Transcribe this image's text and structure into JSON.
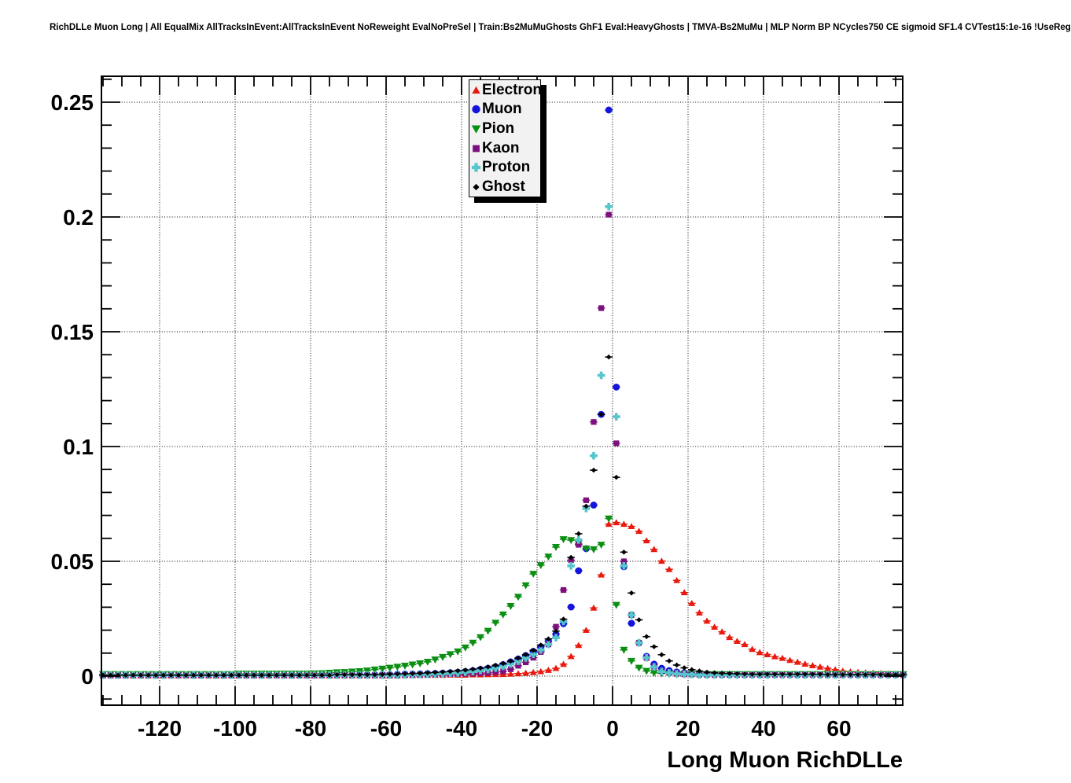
{
  "title": "RichDLLe Muon Long | All EqualMix AllTracksInEvent:AllTracksInEvent NoReweight EvalNoPreSel | Train:Bs2MuMuGhosts GhF1 Eval:HeavyGhosts | TMVA-Bs2MuMu | MLP Norm BP NCycles750 CE sigmoid SF1.4 CVTest15:1e-16 !UseReg",
  "colors": {
    "electron": "#e8190d",
    "muon": "#1414dd",
    "pion": "#0a8f12",
    "kaon": "#7d107e",
    "proton": "#55c6cd",
    "ghost": "#000000",
    "frame": "#000000",
    "grid": "#000000",
    "legend_bg": "#f2f2f2"
  },
  "chart_data": {
    "type": "scatter",
    "title": "",
    "xlabel": "Long Muon RichDLLe",
    "ylabel": "",
    "grid": "dotted, at major ticks",
    "legend_position": "top-center-right, opaque box with black drop shadow",
    "xlim": [
      -135.4,
      76.9
    ],
    "ylim": [
      -0.0127,
      0.2613
    ],
    "x_major_ticks": [
      -120,
      -100,
      -80,
      -60,
      -40,
      -20,
      0,
      20,
      40,
      60
    ],
    "x_major_tick_labels": [
      "-120",
      "-100",
      "-80",
      "-60",
      "-40",
      "-20",
      "0",
      "20",
      "40",
      "60"
    ],
    "x_minor_step": 5,
    "y_major_ticks": [
      0,
      0.05,
      0.1,
      0.15,
      0.2,
      0.25
    ],
    "y_major_tick_labels": [
      "0",
      "0.05",
      "0.1",
      "0.15",
      "0.2",
      "0.25"
    ],
    "y_minor_step": 0.01,
    "x": [
      -135,
      -133,
      -131,
      -129,
      -127,
      -125,
      -123,
      -121,
      -119,
      -117,
      -115,
      -113,
      -111,
      -109,
      -107,
      -105,
      -103,
      -101,
      -99,
      -97,
      -95,
      -93,
      -91,
      -89,
      -87,
      -85,
      -83,
      -81,
      -79,
      -77,
      -75,
      -73,
      -71,
      -69,
      -67,
      -65,
      -63,
      -61,
      -59,
      -57,
      -55,
      -53,
      -51,
      -49,
      -47,
      -45,
      -43,
      -41,
      -39,
      -37,
      -35,
      -33,
      -31,
      -29,
      -27,
      -25,
      -23,
      -21,
      -19,
      -17,
      -15,
      -13,
      -11,
      -9,
      -7,
      -5,
      -3,
      -1,
      1,
      3,
      5,
      7,
      9,
      11,
      13,
      15,
      17,
      19,
      21,
      23,
      25,
      27,
      29,
      31,
      33,
      35,
      37,
      39,
      41,
      43,
      45,
      47,
      49,
      51,
      53,
      55,
      57,
      59,
      61,
      63,
      65,
      67,
      69,
      71,
      73,
      75,
      77
    ],
    "series": [
      {
        "name": "Electron",
        "marker": "triangle-up",
        "color": "#e8190d",
        "values": [
          0.0002,
          0.0002,
          0.0002,
          0.0002,
          0.0002,
          0.0002,
          0.0002,
          0.0002,
          0.0002,
          0.0002,
          0.0002,
          0.0002,
          0.0002,
          0.0002,
          0.0002,
          0.0002,
          0.0002,
          0.0002,
          0.0002,
          0.0002,
          0.0002,
          0.0002,
          0.0002,
          0.0002,
          0.0002,
          0.0002,
          0.0002,
          0.0002,
          0.0002,
          0.0002,
          0.0002,
          0.0002,
          0.0002,
          0.0002,
          0.0002,
          0.0002,
          0.0002,
          0.0002,
          0.0002,
          0.0002,
          0.0003,
          0.0003,
          0.0003,
          0.0004,
          0.0004,
          0.0004,
          0.0005,
          0.0005,
          0.0005,
          0.0006,
          0.0006,
          0.0007,
          0.0008,
          0.0008,
          0.0009,
          0.0011,
          0.0013,
          0.0016,
          0.002,
          0.0026,
          0.0034,
          0.0052,
          0.0086,
          0.0134,
          0.02,
          0.0297,
          0.0441,
          0.0662,
          0.0669,
          0.0662,
          0.0652,
          0.0631,
          0.059,
          0.0552,
          0.0501,
          0.0465,
          0.0417,
          0.0364,
          0.0317,
          0.0276,
          0.024,
          0.0214,
          0.0193,
          0.0169,
          0.0152,
          0.0138,
          0.0117,
          0.0103,
          0.0094,
          0.0085,
          0.0078,
          0.0069,
          0.0061,
          0.0053,
          0.0046,
          0.004,
          0.0034,
          0.0028,
          0.0022,
          0.0019,
          0.0017,
          0.0015,
          0.0014,
          0.0012,
          0.0011,
          0.001,
          0.0009
        ]
      },
      {
        "name": "Muon",
        "marker": "circle",
        "color": "#1414dd",
        "values": [
          0.0004,
          0.0004,
          0.0004,
          0.0004,
          0.0004,
          0.0004,
          0.0004,
          0.0004,
          0.0004,
          0.0004,
          0.0004,
          0.0004,
          0.0004,
          0.0004,
          0.0004,
          0.0004,
          0.0004,
          0.0004,
          0.0004,
          0.0004,
          0.0004,
          0.0004,
          0.0004,
          0.0004,
          0.0004,
          0.0004,
          0.0004,
          0.0004,
          0.0004,
          0.0004,
          0.0004,
          0.0005,
          0.0005,
          0.0005,
          0.0006,
          0.0006,
          0.0006,
          0.0007,
          0.0007,
          0.0008,
          0.0009,
          0.0009,
          0.001,
          0.0011,
          0.0012,
          0.0013,
          0.0015,
          0.0017,
          0.002,
          0.0024,
          0.0029,
          0.0034,
          0.0041,
          0.005,
          0.0062,
          0.0075,
          0.009,
          0.0108,
          0.0128,
          0.0152,
          0.0183,
          0.0228,
          0.0301,
          0.0459,
          0.0555,
          0.0745,
          0.114,
          0.2466,
          0.1259,
          0.0476,
          0.023,
          0.0145,
          0.0086,
          0.0052,
          0.0034,
          0.0024,
          0.0018,
          0.0014,
          0.0012,
          0.001,
          0.0009,
          0.0008,
          0.0008,
          0.0007,
          0.0006,
          0.0006,
          0.0006,
          0.0006,
          0.0006,
          0.0006,
          0.0005,
          0.0005,
          0.0005,
          0.0005,
          0.0005,
          0.0005,
          0.0005,
          0.0005,
          0.0005,
          0.0005,
          0.0005,
          0.0005,
          0.0005,
          0.0005,
          0.0005,
          0.0005,
          0.0005
        ]
      },
      {
        "name": "Pion",
        "marker": "triangle-down",
        "color": "#0a8f12",
        "values": [
          0.0008,
          0.0008,
          0.0008,
          0.0008,
          0.0008,
          0.0008,
          0.0008,
          0.0008,
          0.0008,
          0.0008,
          0.0008,
          0.0008,
          0.0008,
          0.0008,
          0.0008,
          0.0008,
          0.0008,
          0.0008,
          0.001,
          0.001,
          0.001,
          0.001,
          0.001,
          0.001,
          0.001,
          0.001,
          0.001,
          0.001,
          0.0011,
          0.0012,
          0.0014,
          0.0016,
          0.0017,
          0.0019,
          0.0021,
          0.0024,
          0.0028,
          0.0032,
          0.0036,
          0.004,
          0.0045,
          0.005,
          0.0055,
          0.0062,
          0.0072,
          0.0083,
          0.0095,
          0.0107,
          0.0124,
          0.0145,
          0.0169,
          0.0197,
          0.0232,
          0.0268,
          0.0305,
          0.0345,
          0.0395,
          0.0445,
          0.0483,
          0.052,
          0.0562,
          0.0596,
          0.0592,
          0.0576,
          0.0555,
          0.0552,
          0.0572,
          0.0686,
          0.031,
          0.0114,
          0.0066,
          0.0036,
          0.0022,
          0.0014,
          0.0012,
          0.001,
          0.0008,
          0.0008,
          0.0008,
          0.0008,
          0.0008,
          0.0008,
          0.0008,
          0.0008,
          0.0008,
          0.0008,
          0.0008,
          0.0008,
          0.0008,
          0.0008,
          0.0008,
          0.0008,
          0.0008,
          0.0008,
          0.0008,
          0.0008,
          0.0008,
          0.0008,
          0.0008,
          0.0008,
          0.0008,
          0.0008,
          0.0008,
          0.0008,
          0.0008,
          0.0008,
          0.0008
        ]
      },
      {
        "name": "Kaon",
        "marker": "square",
        "color": "#7d107e",
        "values": [
          0.0003,
          0.0003,
          0.0003,
          0.0003,
          0.0003,
          0.0003,
          0.0003,
          0.0003,
          0.0003,
          0.0003,
          0.0003,
          0.0003,
          0.0003,
          0.0003,
          0.0003,
          0.0003,
          0.0003,
          0.0003,
          0.0003,
          0.0003,
          0.0003,
          0.0003,
          0.0003,
          0.0003,
          0.0003,
          0.0003,
          0.0003,
          0.0003,
          0.0003,
          0.0003,
          0.0003,
          0.0003,
          0.0003,
          0.0003,
          0.0003,
          0.0003,
          0.0003,
          0.0003,
          0.0003,
          0.0003,
          0.0004,
          0.0004,
          0.0005,
          0.0005,
          0.0006,
          0.0007,
          0.0008,
          0.0009,
          0.001,
          0.0011,
          0.0012,
          0.0014,
          0.0017,
          0.0021,
          0.003,
          0.0045,
          0.006,
          0.008,
          0.0105,
          0.0138,
          0.0215,
          0.0375,
          0.0505,
          0.0572,
          0.0766,
          0.1107,
          0.1603,
          0.201,
          0.1014,
          0.05,
          0.0266,
          0.0145,
          0.0079,
          0.0041,
          0.0021,
          0.0014,
          0.001,
          0.0008,
          0.0007,
          0.0006,
          0.0005,
          0.0005,
          0.0005,
          0.0005,
          0.0005,
          0.0005,
          0.0005,
          0.0005,
          0.0005,
          0.0005,
          0.0005,
          0.0005,
          0.0005,
          0.0005,
          0.0005,
          0.0005,
          0.0005,
          0.0005,
          0.0005,
          0.0005,
          0.0005,
          0.0005,
          0.0005,
          0.0005,
          0.0005,
          0.0005,
          0.0005
        ]
      },
      {
        "name": "Proton",
        "marker": "plus",
        "color": "#55c6cd",
        "values": [
          0.0004,
          0.0004,
          0.0004,
          0.0004,
          0.0004,
          0.0004,
          0.0004,
          0.0004,
          0.0004,
          0.0004,
          0.0004,
          0.0004,
          0.0004,
          0.0004,
          0.0004,
          0.0004,
          0.0004,
          0.0004,
          0.0004,
          0.0004,
          0.0004,
          0.0004,
          0.0004,
          0.0004,
          0.0004,
          0.0004,
          0.0004,
          0.0004,
          0.0004,
          0.0004,
          0.0004,
          0.0004,
          0.0004,
          0.0004,
          0.0004,
          0.0004,
          0.0004,
          0.0004,
          0.0004,
          0.0004,
          0.0005,
          0.0006,
          0.0007,
          0.0008,
          0.0009,
          0.001,
          0.0012,
          0.0014,
          0.0017,
          0.002,
          0.0024,
          0.0029,
          0.0035,
          0.0043,
          0.0053,
          0.0065,
          0.0079,
          0.0095,
          0.0114,
          0.0138,
          0.0167,
          0.0238,
          0.048,
          0.0593,
          0.073,
          0.096,
          0.131,
          0.2045,
          0.113,
          0.048,
          0.0266,
          0.0145,
          0.008,
          0.004,
          0.002,
          0.0014,
          0.001,
          0.0008,
          0.0007,
          0.0005,
          0.0005,
          0.0005,
          0.0005,
          0.0005,
          0.0005,
          0.0005,
          0.0005,
          0.0005,
          0.0005,
          0.0005,
          0.0005,
          0.0005,
          0.0005,
          0.0005,
          0.0005,
          0.0005,
          0.0005,
          0.0005,
          0.0005,
          0.0005,
          0.0005,
          0.0005,
          0.0005,
          0.0005,
          0.0005,
          0.0005,
          0.0005
        ]
      },
      {
        "name": "Ghost",
        "marker": "diamond",
        "color": "#000000",
        "values": [
          0.0004,
          0.0004,
          0.0004,
          0.0004,
          0.0004,
          0.0004,
          0.0004,
          0.0004,
          0.0004,
          0.0004,
          0.0004,
          0.0004,
          0.0004,
          0.0004,
          0.0004,
          0.0004,
          0.0004,
          0.0004,
          0.0004,
          0.0004,
          0.0004,
          0.0004,
          0.0004,
          0.0004,
          0.0004,
          0.0004,
          0.0004,
          0.0004,
          0.0004,
          0.0004,
          0.0004,
          0.0006,
          0.0006,
          0.0006,
          0.0006,
          0.0006,
          0.0006,
          0.0007,
          0.0008,
          0.0009,
          0.001,
          0.0011,
          0.0012,
          0.0014,
          0.0016,
          0.0018,
          0.002,
          0.0023,
          0.0026,
          0.003,
          0.0035,
          0.004,
          0.0047,
          0.0055,
          0.0065,
          0.0078,
          0.0093,
          0.0112,
          0.0135,
          0.0162,
          0.0196,
          0.0248,
          0.0517,
          0.062,
          0.074,
          0.0897,
          0.114,
          0.139,
          0.0866,
          0.054,
          0.0362,
          0.0245,
          0.0172,
          0.0128,
          0.0093,
          0.0066,
          0.0048,
          0.0036,
          0.0028,
          0.0022,
          0.0017,
          0.0014,
          0.0012,
          0.0011,
          0.001,
          0.0009,
          0.0008,
          0.0008,
          0.0008,
          0.0008,
          0.0008,
          0.0008,
          0.0008,
          0.0008,
          0.0008,
          0.0008,
          0.0006,
          0.0006,
          0.0006,
          0.0006,
          0.0006,
          0.0006,
          0.0006,
          0.0006,
          0.0006,
          0.0006,
          0.0006
        ]
      }
    ]
  },
  "legend": {
    "items": [
      "Electron",
      "Muon",
      "Pion",
      "Kaon",
      "Proton",
      "Ghost"
    ]
  }
}
